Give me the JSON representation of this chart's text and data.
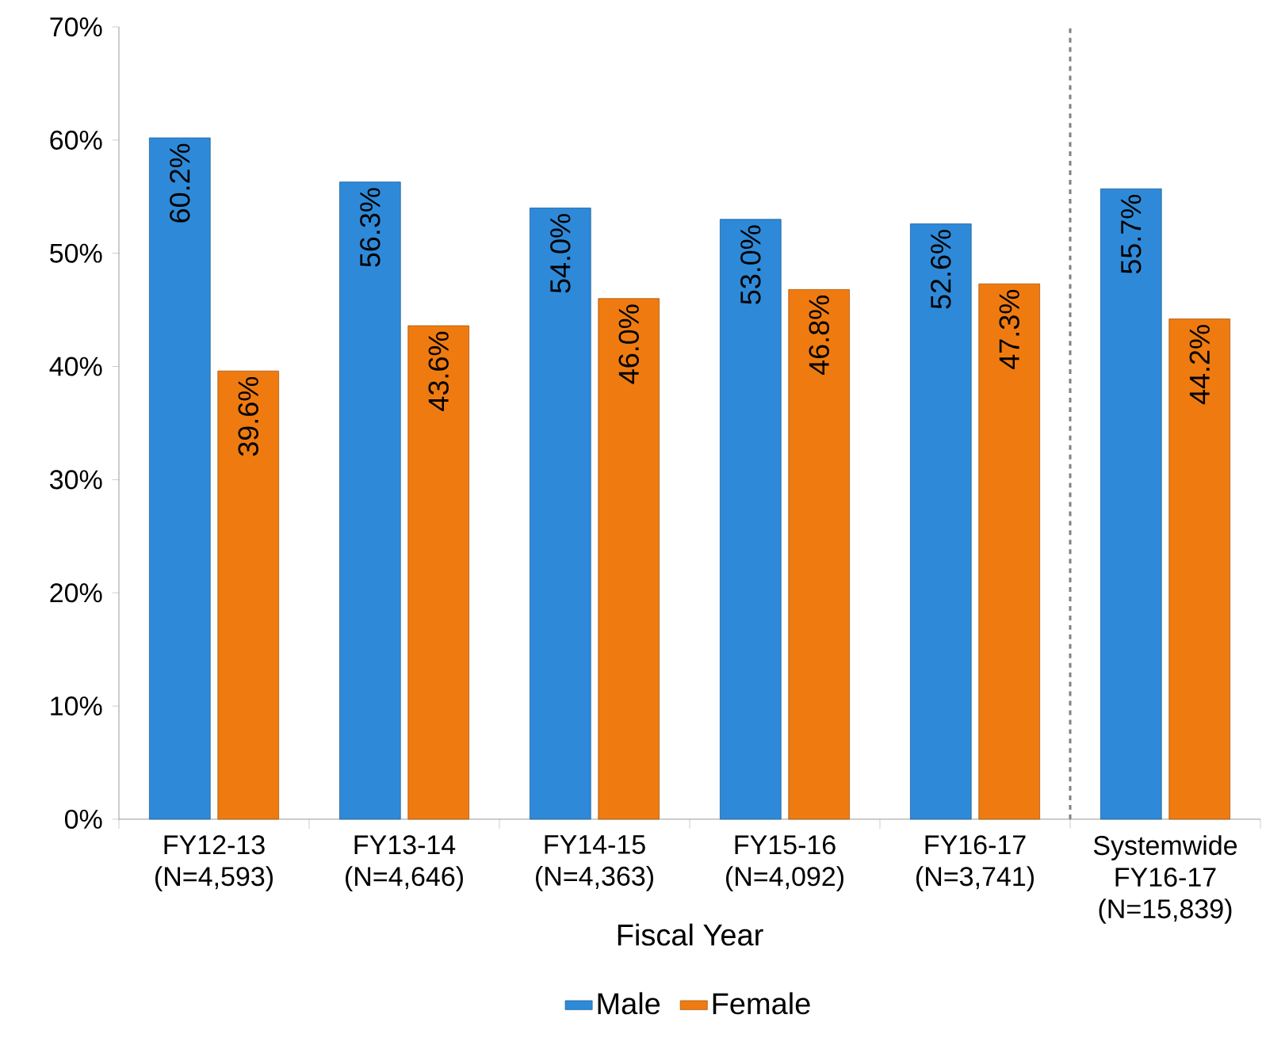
{
  "chart_data": {
    "type": "bar",
    "categories": [
      "FY12-13 (N=4,593)",
      "FY13-14 (N=4,646)",
      "FY14-15 (N=4,363)",
      "FY15-16 (N=4,092)",
      "FY16-17 (N=3,741)",
      "Systemwide FY16-17 (N=15,839)"
    ],
    "series": [
      {
        "name": "Male",
        "color": "#2e8ad8",
        "values": [
          60.2,
          56.3,
          54.0,
          53.0,
          52.6,
          55.7
        ],
        "value_labels": [
          "60.2%",
          "56.3%",
          "54.0%",
          "53.0%",
          "52.6%",
          "55.7%"
        ]
      },
      {
        "name": "Female",
        "color": "#ef7b10",
        "values": [
          39.6,
          43.6,
          46.0,
          46.8,
          47.3,
          44.2
        ],
        "value_labels": [
          "39.6%",
          "43.6%",
          "46.0%",
          "46.8%",
          "47.3%",
          "44.2%"
        ]
      }
    ],
    "xlabel": "Fiscal Year",
    "ylim": [
      0,
      70
    ],
    "yticks": [
      {
        "value": 0,
        "label": "0%"
      },
      {
        "value": 10,
        "label": "10%"
      },
      {
        "value": 20,
        "label": "20%"
      },
      {
        "value": 30,
        "label": "30%"
      },
      {
        "value": 40,
        "label": "40%"
      },
      {
        "value": 50,
        "label": "50%"
      },
      {
        "value": 60,
        "label": "60%"
      },
      {
        "value": 70,
        "label": "70%"
      }
    ],
    "legend": "bottom"
  }
}
